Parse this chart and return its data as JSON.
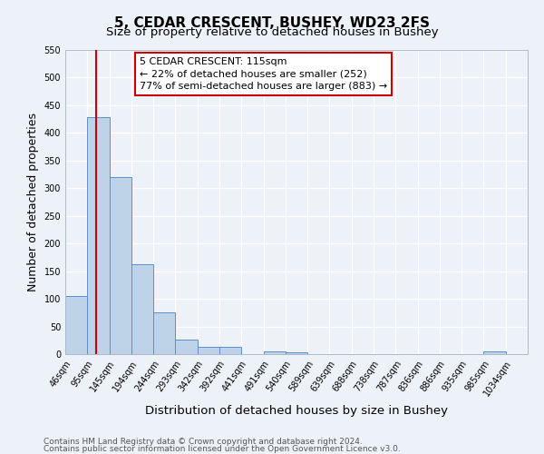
{
  "title": "5, CEDAR CRESCENT, BUSHEY, WD23 2FS",
  "subtitle": "Size of property relative to detached houses in Bushey",
  "xlabel": "Distribution of detached houses by size in Bushey",
  "ylabel": "Number of detached properties",
  "bin_labels": [
    "46sqm",
    "95sqm",
    "145sqm",
    "194sqm",
    "244sqm",
    "293sqm",
    "342sqm",
    "392sqm",
    "441sqm",
    "491sqm",
    "540sqm",
    "589sqm",
    "639sqm",
    "688sqm",
    "738sqm",
    "787sqm",
    "836sqm",
    "886sqm",
    "935sqm",
    "985sqm",
    "1034sqm"
  ],
  "bar_heights": [
    105,
    428,
    320,
    162,
    75,
    27,
    13,
    13,
    0,
    5,
    4,
    0,
    0,
    0,
    0,
    0,
    0,
    0,
    0,
    5,
    0
  ],
  "bar_color": "#bed3e8",
  "bar_edge_color": "#5b8fc9",
  "ylim": [
    0,
    550
  ],
  "yticks": [
    0,
    50,
    100,
    150,
    200,
    250,
    300,
    350,
    400,
    450,
    500,
    550
  ],
  "vline_x": 1.42,
  "vline_color": "#cc0000",
  "annotation_title": "5 CEDAR CRESCENT: 115sqm",
  "annotation_line1": "← 22% of detached houses are smaller (252)",
  "annotation_line2": "77% of semi-detached houses are larger (883) →",
  "annotation_box_color": "#cc0000",
  "footer_line1": "Contains HM Land Registry data © Crown copyright and database right 2024.",
  "footer_line2": "Contains public sector information licensed under the Open Government Licence v3.0.",
  "bg_color": "#edf1f8",
  "grid_color": "#ffffff",
  "title_fontsize": 11,
  "subtitle_fontsize": 9.5,
  "axis_label_fontsize": 9,
  "tick_fontsize": 7,
  "footer_fontsize": 6.5,
  "annotation_fontsize": 8
}
